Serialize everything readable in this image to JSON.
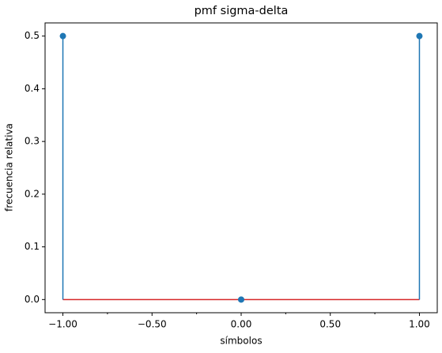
{
  "chart_data": {
    "type": "stem",
    "title": "pmf sigma-delta",
    "xlabel": "símbolos",
    "ylabel": "frecuencia relativa",
    "x": [
      -1,
      0,
      1
    ],
    "values": [
      0.5,
      0,
      0.5
    ],
    "color": "#1f77b4",
    "baseline": 0,
    "baseline_color": "#d62728",
    "xlim": [
      -1.1,
      1.1
    ],
    "ylim": [
      -0.025,
      0.525
    ],
    "xticks": [
      {
        "value": -1,
        "label": "−1.00"
      },
      {
        "value": -0.5,
        "label": "−0.50"
      },
      {
        "value": 0,
        "label": "0.00"
      },
      {
        "value": 0.5,
        "label": "0.50"
      },
      {
        "value": 1,
        "label": "1.00"
      }
    ],
    "xminorticks": [
      -0.75,
      -0.25,
      0.25,
      0.75
    ],
    "yticks": [
      {
        "value": 0,
        "label": "0.0"
      },
      0.1,
      0.2,
      0.3,
      0.4,
      0.5
    ]
  }
}
